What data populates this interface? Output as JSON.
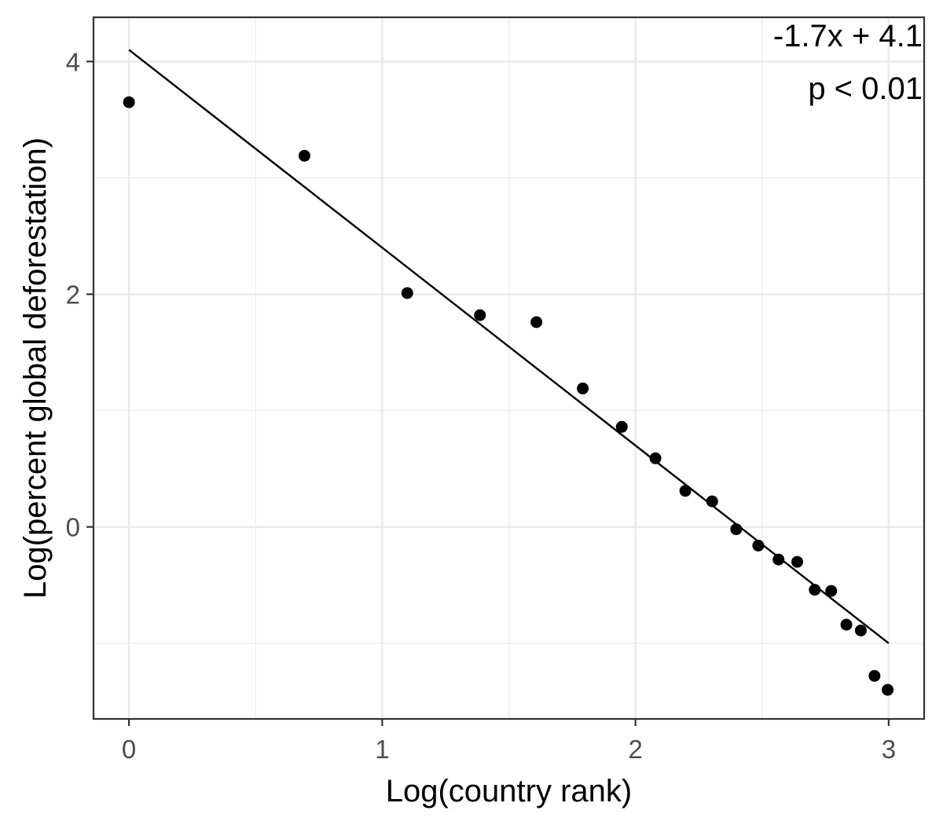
{
  "chart_data": {
    "type": "scatter",
    "xlabel": "Log(country rank)",
    "ylabel": "Log(percent global deforestation)",
    "xlim": [
      -0.14,
      3.14
    ],
    "ylim": [
      -1.65,
      4.38
    ],
    "x_ticks": [
      0,
      1,
      2,
      3
    ],
    "x_tick_labels": [
      "0",
      "1",
      "2",
      "3"
    ],
    "y_ticks": [
      0,
      2,
      4
    ],
    "y_tick_labels": [
      "0",
      "2",
      "4"
    ],
    "x_minor_ticks": [
      0.5,
      1.5,
      2.5
    ],
    "y_minor_ticks": [
      -1,
      1,
      3
    ],
    "grid": true,
    "series": [
      {
        "points": [
          {
            "x": 0.0,
            "y": 3.65
          },
          {
            "x": 0.693,
            "y": 3.19
          },
          {
            "x": 1.099,
            "y": 2.01
          },
          {
            "x": 1.386,
            "y": 1.82
          },
          {
            "x": 1.609,
            "y": 1.76
          },
          {
            "x": 1.792,
            "y": 1.19
          },
          {
            "x": 1.946,
            "y": 0.86
          },
          {
            "x": 2.079,
            "y": 0.59
          },
          {
            "x": 2.197,
            "y": 0.31
          },
          {
            "x": 2.303,
            "y": 0.22
          },
          {
            "x": 2.398,
            "y": -0.02
          },
          {
            "x": 2.485,
            "y": -0.16
          },
          {
            "x": 2.565,
            "y": -0.28
          },
          {
            "x": 2.639,
            "y": -0.3
          },
          {
            "x": 2.708,
            "y": -0.54
          },
          {
            "x": 2.773,
            "y": -0.55
          },
          {
            "x": 2.833,
            "y": -0.84
          },
          {
            "x": 2.89,
            "y": -0.89
          },
          {
            "x": 2.944,
            "y": -1.28
          },
          {
            "x": 2.996,
            "y": -1.4
          }
        ],
        "color": "#000000"
      }
    ],
    "fit_line": {
      "slope": -1.7,
      "intercept": 4.1,
      "x_range": [
        0,
        3
      ],
      "color": "#000000"
    },
    "annotations": [
      "-1.7x + 4.1",
      "p < 0.01"
    ],
    "colors": {
      "panel_border": "#333333",
      "grid": "#ebebeb",
      "tick_label": "#4d4d4d"
    }
  }
}
